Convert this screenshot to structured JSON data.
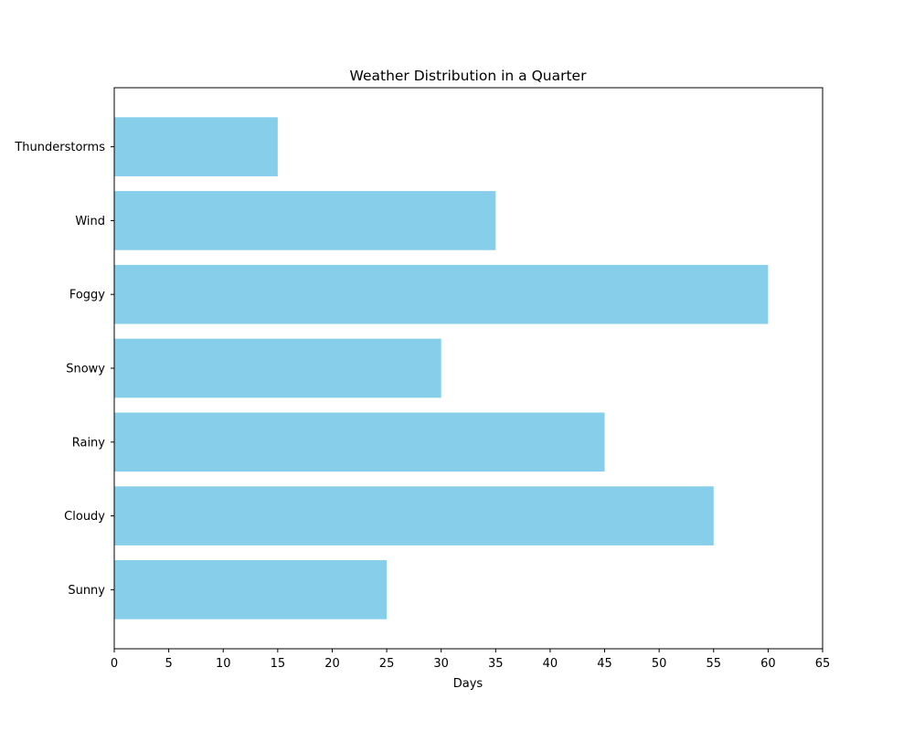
{
  "chart_data": {
    "type": "bar",
    "orientation": "horizontal",
    "title": "Weather Distribution in a Quarter",
    "xlabel": "Days",
    "ylabel": "",
    "categories": [
      "Sunny",
      "Cloudy",
      "Rainy",
      "Snowy",
      "Foggy",
      "Wind",
      "Thunderstorms"
    ],
    "values": [
      25,
      55,
      45,
      30,
      60,
      35,
      15
    ],
    "xlim": [
      0,
      65
    ],
    "xticks": [
      0,
      5,
      10,
      15,
      20,
      25,
      30,
      35,
      40,
      45,
      50,
      55,
      60,
      65
    ],
    "bar_color": "#87CEEB",
    "grid": false,
    "legend": "none"
  }
}
